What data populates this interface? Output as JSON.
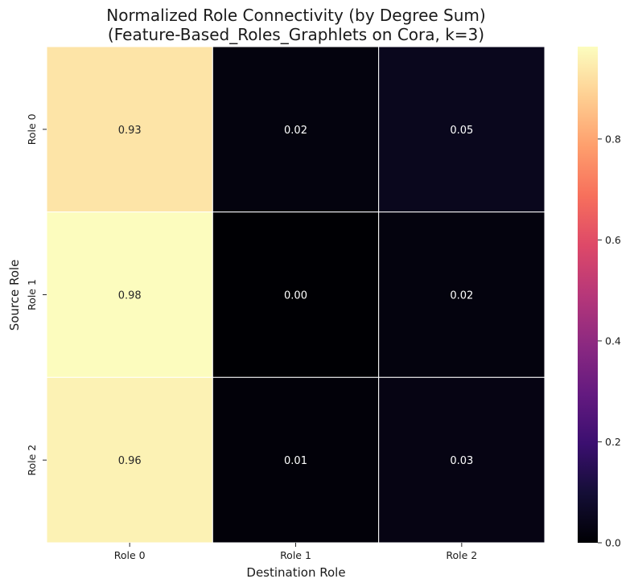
{
  "chart_data": {
    "type": "heatmap",
    "title_line1": "Normalized Role Connectivity (by Degree Sum)",
    "title_line2": "(Feature-Based_Roles_Graphlets on Cora, k=3)",
    "xlabel": "Destination Role",
    "ylabel": "Source Role",
    "x_categories": [
      "Role 0",
      "Role 1",
      "Role 2"
    ],
    "y_categories": [
      "Role 0",
      "Role 1",
      "Role 2"
    ],
    "values": [
      [
        0.93,
        0.02,
        0.05
      ],
      [
        0.98,
        0.0,
        0.02
      ],
      [
        0.96,
        0.01,
        0.03
      ]
    ],
    "cell_labels": [
      [
        "0.93",
        "0.02",
        "0.05"
      ],
      [
        "0.98",
        "0.00",
        "0.02"
      ],
      [
        "0.96",
        "0.01",
        "0.03"
      ]
    ],
    "colormap": "magma",
    "vmin": 0.0,
    "vmax": 0.983,
    "colorbar_ticks": [
      0.0,
      0.2,
      0.4,
      0.6,
      0.8
    ],
    "colorbar_tick_labels": [
      "0.0",
      "0.2",
      "0.4",
      "0.6",
      "0.8"
    ],
    "grid": true,
    "grid_color": "#ffffff",
    "dark_text_color": "#262626",
    "light_text_color": "#ffffff"
  }
}
